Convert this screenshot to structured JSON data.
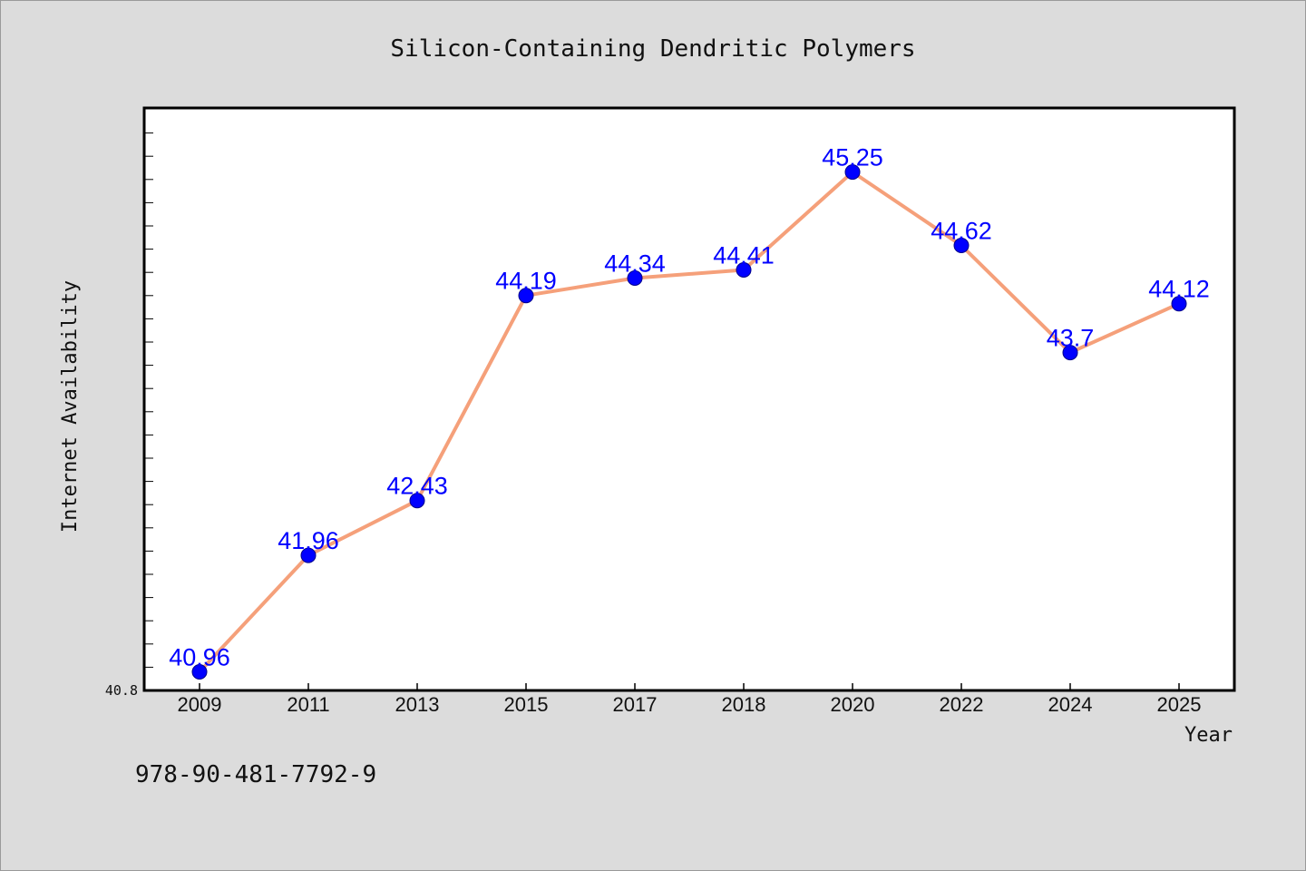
{
  "chart_data": {
    "type": "line",
    "title": "Silicon-Containing Dendritic Polymers",
    "xlabel": "Year",
    "ylabel": "Internet Availability",
    "categories": [
      "2009",
      "2011",
      "2013",
      "2015",
      "2017",
      "2018",
      "2020",
      "2022",
      "2024",
      "2025"
    ],
    "values": [
      40.96,
      41.96,
      42.43,
      44.19,
      44.34,
      44.41,
      45.25,
      44.62,
      43.7,
      44.12
    ],
    "data_labels": [
      "40.96",
      "41.96",
      "42.43",
      "44.19",
      "44.34",
      "44.41",
      "45.25",
      "44.62",
      "43.7",
      "44.12"
    ],
    "ylim": [
      40.8,
      45.8
    ],
    "ytick_labels": [
      "40.8"
    ],
    "grid": false,
    "legend": "none",
    "colors": {
      "line": "#f5a07a",
      "marker": "#0000ff",
      "data_label": "#0000ff",
      "plot_background": "#ffffff",
      "page_background": "#dcdcdc"
    }
  },
  "footer": {
    "isbn": "978-90-481-7792-9"
  }
}
